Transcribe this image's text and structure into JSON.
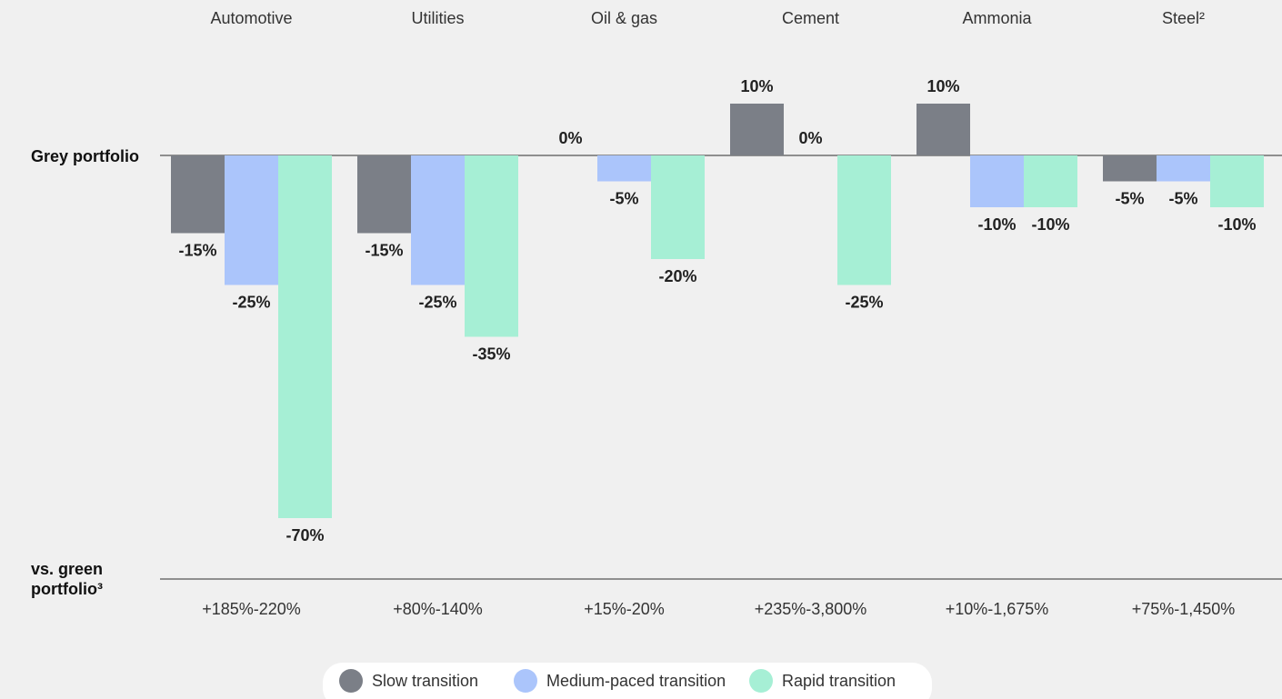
{
  "chart_data": {
    "type": "bar",
    "categories": [
      "Automotive",
      "Utilities",
      "Oil & gas",
      "Cement",
      "Ammonia",
      "Steel²"
    ],
    "series": [
      {
        "name": "Slow transition",
        "color": "#7b7f87",
        "values": [
          -15,
          -15,
          0,
          10,
          10,
          -5
        ],
        "value_labels": [
          "-15%",
          "-15%",
          "0%",
          "10%",
          "10%",
          "-5%"
        ]
      },
      {
        "name": "Medium-paced transition",
        "color": "#abc5fb",
        "values": [
          -25,
          -25,
          -5,
          0,
          -10,
          -5
        ],
        "value_labels": [
          "-25%",
          "-25%",
          "-5%",
          "0%",
          "-10%",
          "-5%"
        ]
      },
      {
        "name": "Rapid transition",
        "color": "#a6efd5",
        "values": [
          -70,
          -35,
          -20,
          -25,
          -10,
          -10
        ],
        "value_labels": [
          "-70%",
          "-35%",
          "-20%",
          "-25%",
          "-10%",
          "-10%"
        ]
      }
    ],
    "row_labels": {
      "top": "Grey portfolio",
      "bottom": "vs. green portfolio³"
    },
    "green_ranges": [
      "+185%-220%",
      "+80%-140%",
      "+15%-20%",
      "+235%-3,800%",
      "+10%-1,675%",
      "+75%-1,450%"
    ],
    "legend": "bottom"
  }
}
